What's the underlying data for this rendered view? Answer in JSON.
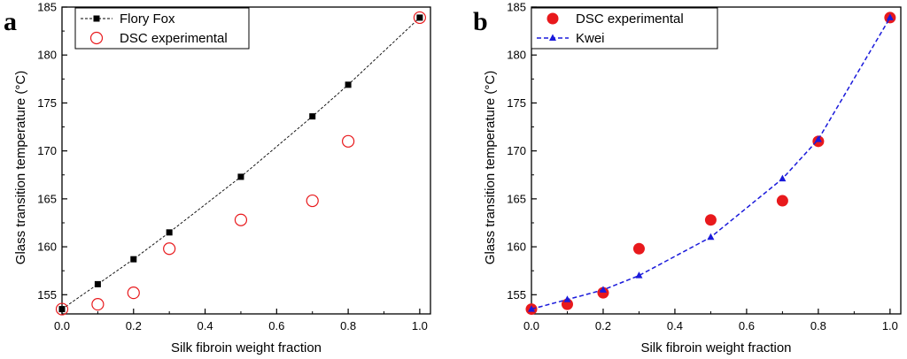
{
  "chart_data": [
    {
      "type": "line",
      "panel_label": "a",
      "xlabel": "Silk fibroin weight fraction",
      "ylabel": "Glass transition temperature (°C)",
      "xlim": [
        0.0,
        1.03
      ],
      "ylim": [
        153,
        185
      ],
      "xticks": [
        0.0,
        0.2,
        0.4,
        0.6,
        0.8,
        1.0
      ],
      "xtick_labels": [
        "0.0",
        "0.2",
        "0.4",
        "0.6",
        "0.8",
        "1.0"
      ],
      "yticks": [
        155,
        160,
        165,
        170,
        175,
        180,
        185
      ],
      "ytick_labels": [
        "155",
        "160",
        "165",
        "170",
        "175",
        "180",
        "185"
      ],
      "legend_position": "top-right",
      "grid": false,
      "series": [
        {
          "name": "Flory Fox",
          "style": "line-square",
          "color": "#000000",
          "x": [
            0.0,
            0.1,
            0.2,
            0.3,
            0.5,
            0.7,
            0.8,
            1.0
          ],
          "y": [
            153.5,
            156.1,
            158.7,
            161.5,
            167.3,
            173.6,
            176.9,
            183.9
          ]
        },
        {
          "name": "DSC experimental",
          "style": "open-circle",
          "color": "#e8191c",
          "x": [
            0.0,
            0.1,
            0.2,
            0.3,
            0.5,
            0.7,
            0.8,
            1.0
          ],
          "y": [
            153.5,
            154.0,
            155.2,
            159.8,
            162.8,
            164.8,
            171.0,
            183.9
          ]
        }
      ]
    },
    {
      "type": "line",
      "panel_label": "b",
      "xlabel": "Silk fibroin weight fraction",
      "ylabel": "Glass transition temperature (°C)",
      "xlim": [
        0.0,
        1.03
      ],
      "ylim": [
        153,
        185
      ],
      "xticks": [
        0.0,
        0.2,
        0.4,
        0.6,
        0.8,
        1.0
      ],
      "xtick_labels": [
        "0.0",
        "0.2",
        "0.4",
        "0.6",
        "0.8",
        "1.0"
      ],
      "yticks": [
        155,
        160,
        165,
        170,
        175,
        180,
        185
      ],
      "ytick_labels": [
        "155",
        "160",
        "165",
        "170",
        "175",
        "180",
        "185"
      ],
      "legend_position": "top-left",
      "grid": false,
      "series": [
        {
          "name": "DSC experimental",
          "style": "filled-circle",
          "color": "#e8191c",
          "x": [
            0.0,
            0.1,
            0.2,
            0.3,
            0.5,
            0.7,
            0.8,
            1.0
          ],
          "y": [
            153.5,
            154.0,
            155.2,
            159.8,
            162.8,
            164.8,
            171.0,
            183.9
          ]
        },
        {
          "name": "Kwei",
          "style": "dashed-triangle",
          "color": "#1a1adb",
          "x": [
            0.0,
            0.1,
            0.2,
            0.3,
            0.5,
            0.7,
            0.8,
            1.0
          ],
          "y": [
            153.5,
            154.5,
            155.5,
            157.0,
            161.0,
            167.1,
            171.2,
            183.9
          ]
        }
      ]
    }
  ]
}
